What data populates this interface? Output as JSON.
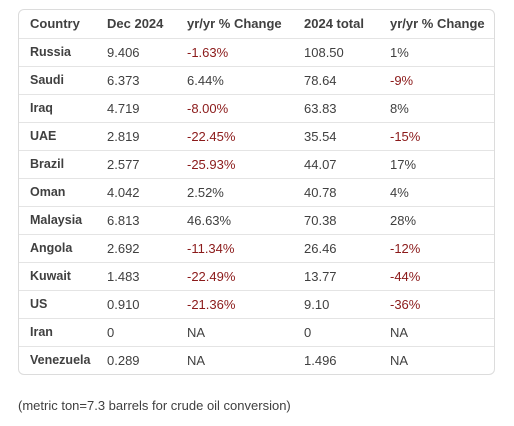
{
  "table": {
    "headers": [
      "Country",
      "Dec 2024",
      "yr/yr % Change",
      "2024 total",
      "yr/yr % Change"
    ],
    "rows": [
      {
        "country": "Russia",
        "dec2024": "9.406",
        "change1": "-1.63%",
        "total2024": "108.50",
        "change2": "1%"
      },
      {
        "country": "Saudi",
        "dec2024": "6.373",
        "change1": "6.44%",
        "total2024": "78.64",
        "change2": "-9%"
      },
      {
        "country": "Iraq",
        "dec2024": "4.719",
        "change1": "-8.00%",
        "total2024": "63.83",
        "change2": "8%"
      },
      {
        "country": "UAE",
        "dec2024": "2.819",
        "change1": "-22.45%",
        "total2024": "35.54",
        "change2": "-15%"
      },
      {
        "country": "Brazil",
        "dec2024": "2.577",
        "change1": "-25.93%",
        "total2024": "44.07",
        "change2": "17%"
      },
      {
        "country": "Oman",
        "dec2024": "4.042",
        "change1": "2.52%",
        "total2024": "40.78",
        "change2": "4%"
      },
      {
        "country": "Malaysia",
        "dec2024": "6.813",
        "change1": "46.63%",
        "total2024": "70.38",
        "change2": "28%"
      },
      {
        "country": "Angola",
        "dec2024": "2.692",
        "change1": "-11.34%",
        "total2024": "26.46",
        "change2": "-12%"
      },
      {
        "country": "Kuwait",
        "dec2024": "1.483",
        "change1": "-22.49%",
        "total2024": "13.77",
        "change2": "-44%"
      },
      {
        "country": "US",
        "dec2024": "0.910",
        "change1": "-21.36%",
        "total2024": "9.10",
        "change2": "-36%"
      },
      {
        "country": "Iran",
        "dec2024": "0",
        "change1": "NA",
        "total2024": "0",
        "change2": "NA"
      },
      {
        "country": "Venezuela",
        "dec2024": "0.289",
        "change1": "NA",
        "total2024": "1.496",
        "change2": "NA"
      }
    ]
  },
  "footnote": "(metric ton=7.3 barrels for crude oil conversion)",
  "colors": {
    "text": "#404040",
    "negative": "#8b1a1a",
    "border": "#dcdcdc"
  }
}
